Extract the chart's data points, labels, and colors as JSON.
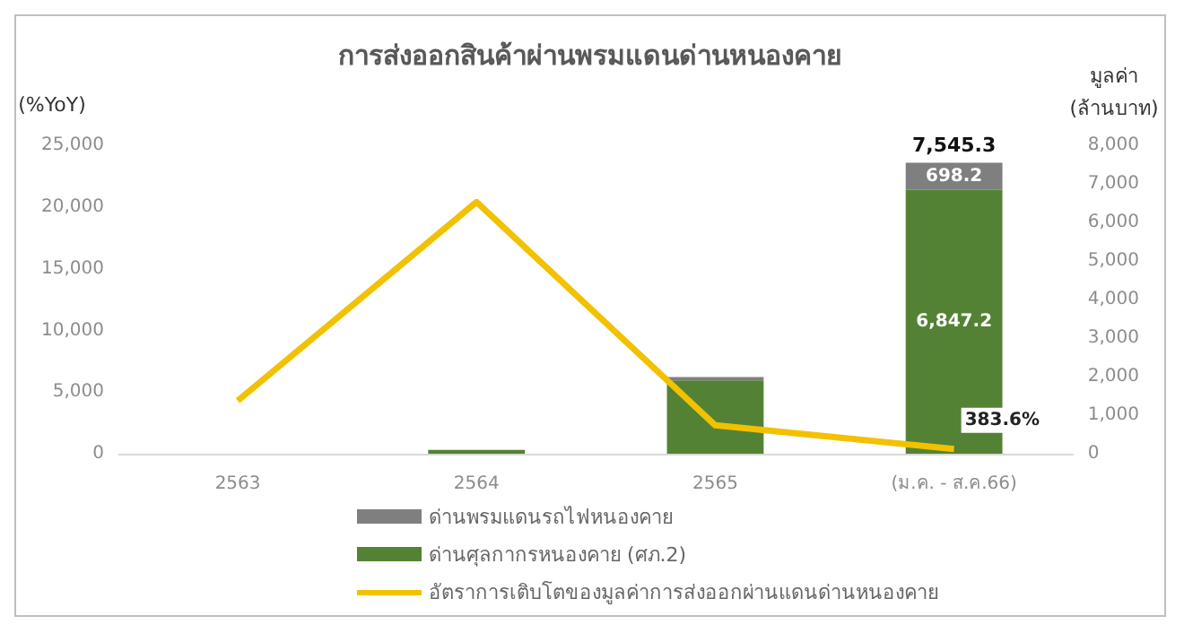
{
  "chart_data": {
    "type": "bar",
    "title": "การส่งออกสินค้าผ่านพรมแดนด่านหนองคาย",
    "ylabel": "(%YoY)",
    "y2label": "มูลค่า (ล้านบาท)",
    "categories": [
      "2563",
      "2564",
      "2565",
      "(ม.ค. - ส.ค.66)"
    ],
    "stacked": true,
    "grid": false,
    "legend": "bottom",
    "marker": "none",
    "series": [
      {
        "name": "ด่านศุลกากรหนองคาย (ศภ.2)",
        "type": "bar",
        "axis": "y2",
        "color": "#548235",
        "values": [
          0,
          100,
          1900,
          6847.2
        ],
        "value_labels": [
          null,
          null,
          null,
          "6,847.2"
        ]
      },
      {
        "name": "ด่านพรมแดนรถไฟหนองคาย",
        "type": "bar",
        "axis": "y2",
        "color": "#7f7f7f",
        "values": [
          0,
          0,
          90,
          698.2
        ],
        "value_labels": [
          null,
          null,
          null,
          "698.2"
        ]
      },
      {
        "name": "อัตราการเติบโตของมูลค่าการส่งออกผ่านแดนด่านหนองคาย",
        "type": "line",
        "axis": "y",
        "color": "#f2c100",
        "values": [
          4300,
          20400,
          2300,
          383.6
        ],
        "value_labels": [
          null,
          null,
          null,
          "383.6%"
        ]
      }
    ],
    "totals": [
      null,
      null,
      null,
      "7,545.3"
    ],
    "ylim": [
      0,
      25000
    ],
    "yticks": [
      0,
      {
        "value": 5000,
        "label": "5,000"
      },
      {
        "value": 10000,
        "label": "10,000"
      },
      {
        "value": 15000,
        "label": "15,000"
      },
      {
        "value": 20000,
        "label": "20,000"
      },
      {
        "value": 25000,
        "label": "25,000"
      }
    ],
    "y2lim": [
      0,
      8000
    ],
    "y2ticks": [
      0,
      {
        "value": 1000,
        "label": "1,000"
      },
      {
        "value": 2000,
        "label": "2,000"
      },
      {
        "value": 3000,
        "label": "3,000"
      },
      {
        "value": 4000,
        "label": "4,000"
      },
      {
        "value": 5000,
        "label": "5,000"
      },
      {
        "value": 6000,
        "label": "6,000"
      },
      {
        "value": 7000,
        "label": "7,000"
      },
      {
        "value": 8000,
        "label": "8,000"
      }
    ]
  }
}
